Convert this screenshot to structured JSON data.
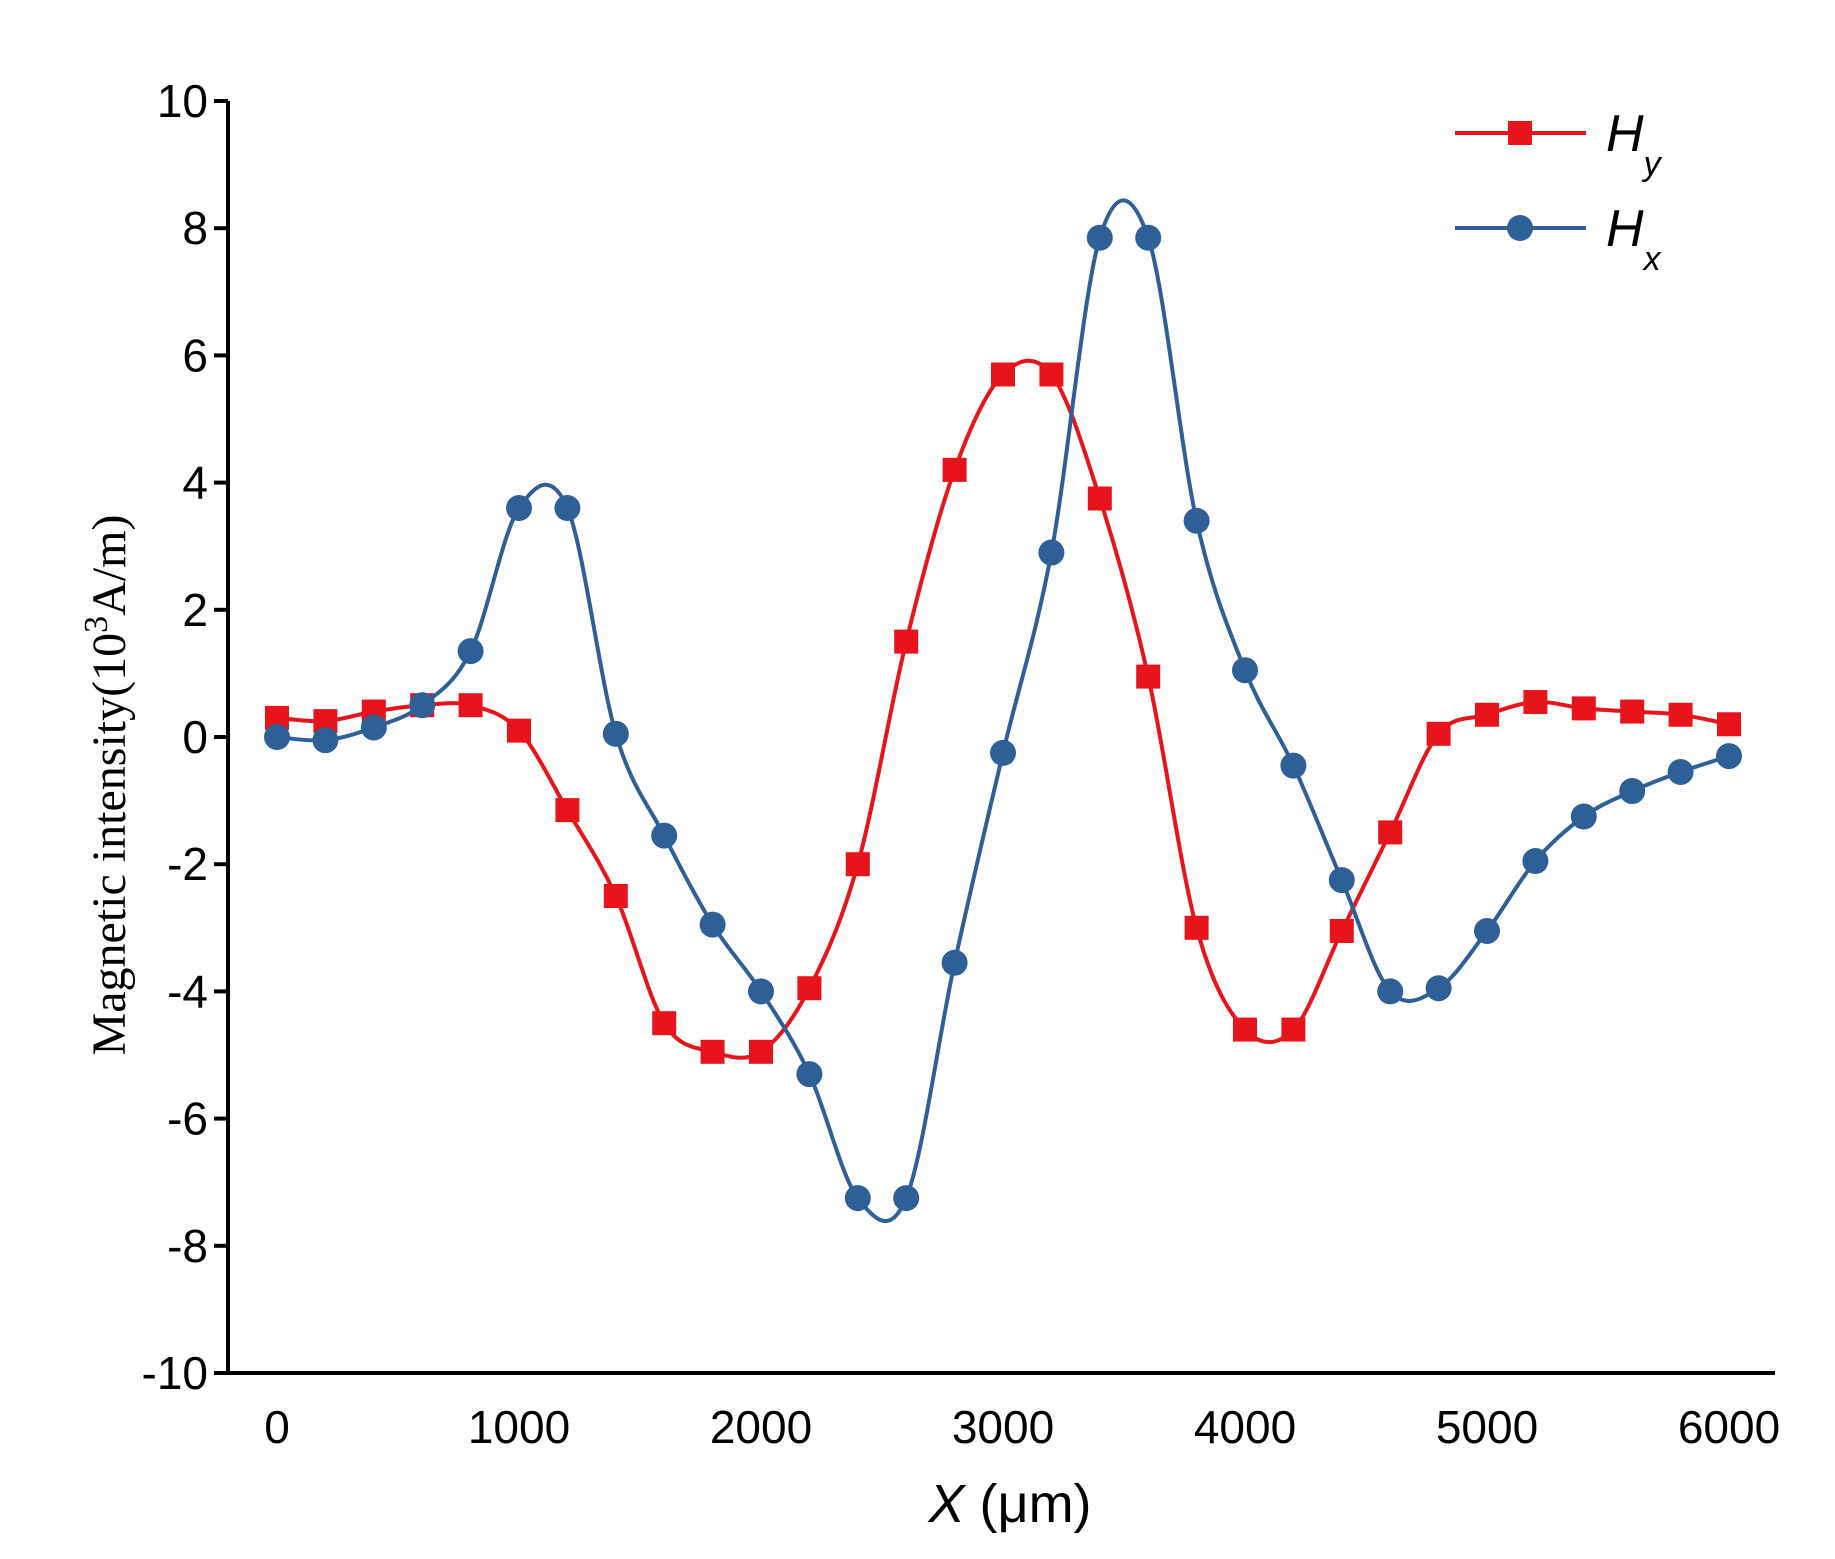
{
  "chart_data": {
    "type": "line",
    "title": "",
    "xlabel": {
      "var": "X",
      "unit": " (μm)"
    },
    "ylabel": {
      "prefix": "Magnetic intensity(10",
      "sup": "3",
      "suffix": "A/m)"
    },
    "xlim": [
      0,
      6000
    ],
    "ylim": [
      -10,
      10
    ],
    "xticks": [
      0,
      1000,
      2000,
      3000,
      4000,
      5000,
      6000
    ],
    "yticks": [
      -10,
      -8,
      -6,
      -4,
      -2,
      0,
      2,
      4,
      6,
      8,
      10
    ],
    "grid": false,
    "legend_position": "top-right",
    "series": [
      {
        "name": "Hy",
        "label_main": "H",
        "label_sub": "y",
        "color": "#e8141b",
        "marker": "square",
        "x": [
          0,
          200,
          400,
          600,
          800,
          1000,
          1200,
          1400,
          1600,
          1800,
          2000,
          2200,
          2400,
          2600,
          2800,
          3000,
          3200,
          3400,
          3600,
          3800,
          4000,
          4200,
          4400,
          4600,
          4800,
          5000,
          5200,
          5400,
          5600,
          5800,
          6000
        ],
        "y": [
          0.3,
          0.25,
          0.4,
          0.5,
          0.5,
          0.1,
          -1.15,
          -2.5,
          -4.5,
          -4.95,
          -4.95,
          -3.95,
          -2.0,
          1.5,
          4.2,
          5.7,
          5.7,
          3.75,
          0.95,
          -3.0,
          -4.6,
          -4.6,
          -3.05,
          -1.5,
          0.05,
          0.35,
          0.55,
          0.45,
          0.4,
          0.35,
          0.2
        ]
      },
      {
        "name": "Hx",
        "label_main": "H",
        "label_sub": "x",
        "color": "#2f5f97",
        "marker": "circle",
        "x": [
          0,
          200,
          400,
          600,
          800,
          1000,
          1200,
          1400,
          1600,
          1800,
          2000,
          2200,
          2400,
          2600,
          2800,
          3000,
          3200,
          3400,
          3600,
          3800,
          4000,
          4200,
          4400,
          4600,
          4800,
          5000,
          5200,
          5400,
          5600,
          5800,
          6000
        ],
        "y": [
          0.0,
          -0.05,
          0.15,
          0.5,
          1.35,
          3.6,
          3.6,
          0.05,
          -1.55,
          -2.95,
          -4.0,
          -5.3,
          -7.25,
          -7.25,
          -3.55,
          -0.25,
          2.9,
          7.85,
          7.85,
          3.4,
          1.05,
          -0.45,
          -2.25,
          -4.0,
          -3.95,
          -3.05,
          -1.95,
          -1.25,
          -0.85,
          -0.55,
          -0.3
        ]
      }
    ]
  }
}
